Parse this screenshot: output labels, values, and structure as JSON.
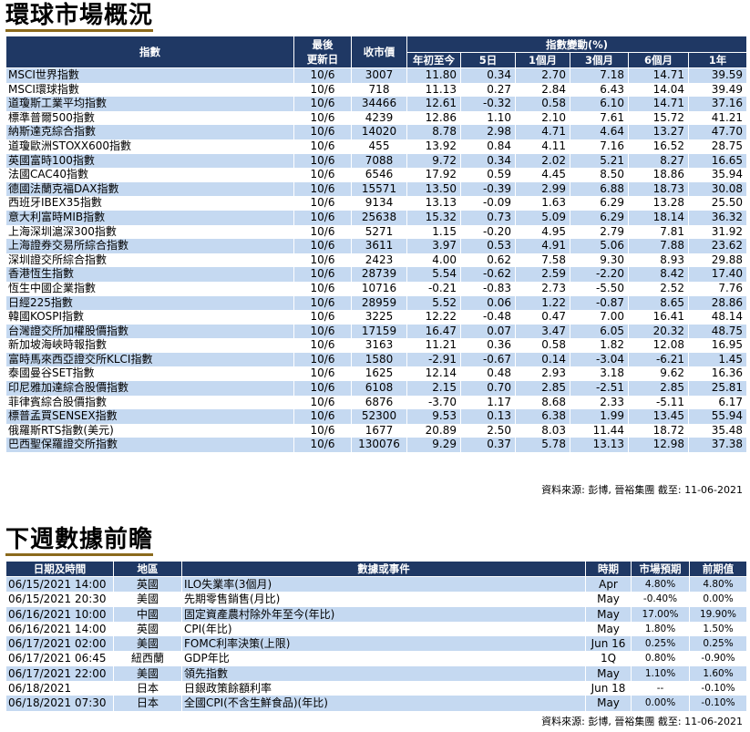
{
  "global_markets": {
    "title": "環球市場概況",
    "header": {
      "index": "指數",
      "last_update_l1": "最後",
      "last_update_l2": "更新日",
      "close": "收市價",
      "change_group": "指數變動(%)",
      "ytd": "年初至今",
      "d5": "5日",
      "m1": "1個月",
      "m3": "3個月",
      "m6": "6個月",
      "y1": "1年"
    },
    "rows": [
      {
        "name": "MSCI世界指數",
        "date": "10/6",
        "close": "3007",
        "ytd": "11.80",
        "d5": "0.34",
        "m1": "2.70",
        "m3": "7.18",
        "m6": "14.71",
        "y1": "39.59"
      },
      {
        "name": "MSCI環球指數",
        "date": "10/6",
        "close": "718",
        "ytd": "11.13",
        "d5": "0.27",
        "m1": "2.84",
        "m3": "6.43",
        "m6": "14.04",
        "y1": "39.49"
      },
      {
        "name": "道瓊斯工業平均指數",
        "date": "10/6",
        "close": "34466",
        "ytd": "12.61",
        "d5": "-0.32",
        "m1": "0.58",
        "m3": "6.10",
        "m6": "14.71",
        "y1": "37.16"
      },
      {
        "name": "標準普爾500指數",
        "date": "10/6",
        "close": "4239",
        "ytd": "12.86",
        "d5": "1.10",
        "m1": "2.10",
        "m3": "7.61",
        "m6": "15.72",
        "y1": "41.21"
      },
      {
        "name": "納斯達克綜合指數",
        "date": "10/6",
        "close": "14020",
        "ytd": "8.78",
        "d5": "2.98",
        "m1": "4.71",
        "m3": "4.64",
        "m6": "13.27",
        "y1": "47.70"
      },
      {
        "name": "道瓊歐洲STOXX600指數",
        "date": "10/6",
        "close": "455",
        "ytd": "13.92",
        "d5": "0.84",
        "m1": "4.11",
        "m3": "7.16",
        "m6": "16.52",
        "y1": "28.75"
      },
      {
        "name": "英國富時100指數",
        "date": "10/6",
        "close": "7088",
        "ytd": "9.72",
        "d5": "0.34",
        "m1": "2.02",
        "m3": "5.21",
        "m6": "8.27",
        "y1": "16.65"
      },
      {
        "name": "法國CAC40指數",
        "date": "10/6",
        "close": "6546",
        "ytd": "17.92",
        "d5": "0.59",
        "m1": "4.45",
        "m3": "8.50",
        "m6": "18.86",
        "y1": "35.94"
      },
      {
        "name": "德國法蘭克福DAX指數",
        "date": "10/6",
        "close": "15571",
        "ytd": "13.50",
        "d5": "-0.39",
        "m1": "2.99",
        "m3": "6.88",
        "m6": "18.73",
        "y1": "30.08"
      },
      {
        "name": "西班牙IBEX35指數",
        "date": "10/6",
        "close": "9134",
        "ytd": "13.13",
        "d5": "-0.09",
        "m1": "1.63",
        "m3": "6.29",
        "m6": "13.28",
        "y1": "25.50"
      },
      {
        "name": "意大利富時MIB指數",
        "date": "10/6",
        "close": "25638",
        "ytd": "15.32",
        "d5": "0.73",
        "m1": "5.09",
        "m3": "6.29",
        "m6": "18.14",
        "y1": "36.32"
      },
      {
        "name": "上海深圳滬深300指數",
        "date": "10/6",
        "close": "5271",
        "ytd": "1.15",
        "d5": "-0.20",
        "m1": "4.95",
        "m3": "2.79",
        "m6": "7.81",
        "y1": "31.92"
      },
      {
        "name": "上海證券交易所綜合指數",
        "date": "10/6",
        "close": "3611",
        "ytd": "3.97",
        "d5": "0.53",
        "m1": "4.91",
        "m3": "5.06",
        "m6": "7.88",
        "y1": "23.62"
      },
      {
        "name": "深圳證交所綜合指數",
        "date": "10/6",
        "close": "2423",
        "ytd": "4.00",
        "d5": "0.62",
        "m1": "7.58",
        "m3": "9.30",
        "m6": "8.93",
        "y1": "29.88"
      },
      {
        "name": "香港恆生指數",
        "date": "10/6",
        "close": "28739",
        "ytd": "5.54",
        "d5": "-0.62",
        "m1": "2.59",
        "m3": "-2.20",
        "m6": "8.42",
        "y1": "17.40"
      },
      {
        "name": "恆生中國企業指數",
        "date": "10/6",
        "close": "10716",
        "ytd": "-0.21",
        "d5": "-0.83",
        "m1": "2.73",
        "m3": "-5.50",
        "m6": "2.52",
        "y1": "7.76"
      },
      {
        "name": "日經225指數",
        "date": "10/6",
        "close": "28959",
        "ytd": "5.52",
        "d5": "0.06",
        "m1": "1.22",
        "m3": "-0.87",
        "m6": "8.65",
        "y1": "28.86"
      },
      {
        "name": "韓國KOSPI指數",
        "date": "10/6",
        "close": "3225",
        "ytd": "12.22",
        "d5": "-0.48",
        "m1": "0.47",
        "m3": "7.00",
        "m6": "16.41",
        "y1": "48.14"
      },
      {
        "name": "台灣證交所加權股價指數",
        "date": "10/6",
        "close": "17159",
        "ytd": "16.47",
        "d5": "0.07",
        "m1": "3.47",
        "m3": "6.05",
        "m6": "20.32",
        "y1": "48.75"
      },
      {
        "name": "新加坡海峽時報指數",
        "date": "10/6",
        "close": "3163",
        "ytd": "11.21",
        "d5": "0.36",
        "m1": "0.58",
        "m3": "1.82",
        "m6": "12.08",
        "y1": "16.95"
      },
      {
        "name": "富時馬來西亞證交所KLCI指數",
        "date": "10/6",
        "close": "1580",
        "ytd": "-2.91",
        "d5": "-0.67",
        "m1": "0.14",
        "m3": "-3.04",
        "m6": "-6.21",
        "y1": "1.45"
      },
      {
        "name": "泰國曼谷SET指數",
        "date": "10/6",
        "close": "1625",
        "ytd": "12.14",
        "d5": "0.48",
        "m1": "2.93",
        "m3": "3.18",
        "m6": "9.62",
        "y1": "16.36"
      },
      {
        "name": "印尼雅加達綜合股價指數",
        "date": "10/6",
        "close": "6108",
        "ytd": "2.15",
        "d5": "0.70",
        "m1": "2.85",
        "m3": "-2.51",
        "m6": "2.85",
        "y1": "25.81"
      },
      {
        "name": "菲律賓綜合股價指數",
        "date": "10/6",
        "close": "6876",
        "ytd": "-3.70",
        "d5": "1.17",
        "m1": "8.68",
        "m3": "2.33",
        "m6": "-5.11",
        "y1": "6.17"
      },
      {
        "name": "標普孟買SENSEX指數",
        "date": "10/6",
        "close": "52300",
        "ytd": "9.53",
        "d5": "0.13",
        "m1": "6.38",
        "m3": "1.99",
        "m6": "13.45",
        "y1": "55.94"
      },
      {
        "name": "俄羅斯RTS指數(美元)",
        "date": "10/6",
        "close": "1677",
        "ytd": "20.89",
        "d5": "2.50",
        "m1": "8.03",
        "m3": "11.44",
        "m6": "18.72",
        "y1": "35.48"
      },
      {
        "name": "巴西聖保羅證交所指數",
        "date": "10/6",
        "close": "130076",
        "ytd": "9.29",
        "d5": "0.37",
        "m1": "5.78",
        "m3": "13.13",
        "m6": "12.98",
        "y1": "37.38"
      }
    ],
    "source": "資料來源: 彭博, 晉裕集團 截至: 11-06-2021"
  },
  "next_week": {
    "title": "下週數據前瞻",
    "header": {
      "datetime": "日期及時間",
      "region": "地區",
      "event": "數據或事件",
      "period": "時期",
      "forecast": "市場預期",
      "previous": "前期值"
    },
    "rows": [
      {
        "datetime": "06/15/2021 14:00",
        "region": "英國",
        "event": "ILO失業率(3個月)",
        "period": "Apr",
        "forecast": "4.80%",
        "previous": "4.80%"
      },
      {
        "datetime": "06/15/2021 20:30",
        "region": "美國",
        "event": "先期零售銷售(月比)",
        "period": "May",
        "forecast": "-0.40%",
        "previous": "0.00%"
      },
      {
        "datetime": "06/16/2021 10:00",
        "region": "中國",
        "event": "固定資產農村除外年至今(年比)",
        "period": "May",
        "forecast": "17.00%",
        "previous": "19.90%"
      },
      {
        "datetime": "06/16/2021 14:00",
        "region": "英國",
        "event": "CPI(年比)",
        "period": "May",
        "forecast": "1.80%",
        "previous": "1.50%"
      },
      {
        "datetime": "06/17/2021 02:00",
        "region": "美國",
        "event": "FOMC利率決策(上限)",
        "period": "Jun 16",
        "forecast": "0.25%",
        "previous": "0.25%"
      },
      {
        "datetime": "06/17/2021 06:45",
        "region": "紐西蘭",
        "event": "GDP年比",
        "period": "1Q",
        "forecast": "0.80%",
        "previous": "-0.90%"
      },
      {
        "datetime": "06/17/2021 22:00",
        "region": "美國",
        "event": "領先指數",
        "period": "May",
        "forecast": "1.10%",
        "previous": "1.60%"
      },
      {
        "datetime": "06/18/2021",
        "region": "日本",
        "event": "日銀政策餘額利率",
        "period": "Jun 18",
        "forecast": "--",
        "previous": "-0.10%"
      },
      {
        "datetime": "06/18/2021 07:30",
        "region": "日本",
        "event": "全國CPI(不含生鮮食品)(年比)",
        "period": "May",
        "forecast": "0.00%",
        "previous": "-0.10%"
      }
    ],
    "source": "資料來源: 彭博, 晉裕集團 截至: 11-06-2021"
  }
}
